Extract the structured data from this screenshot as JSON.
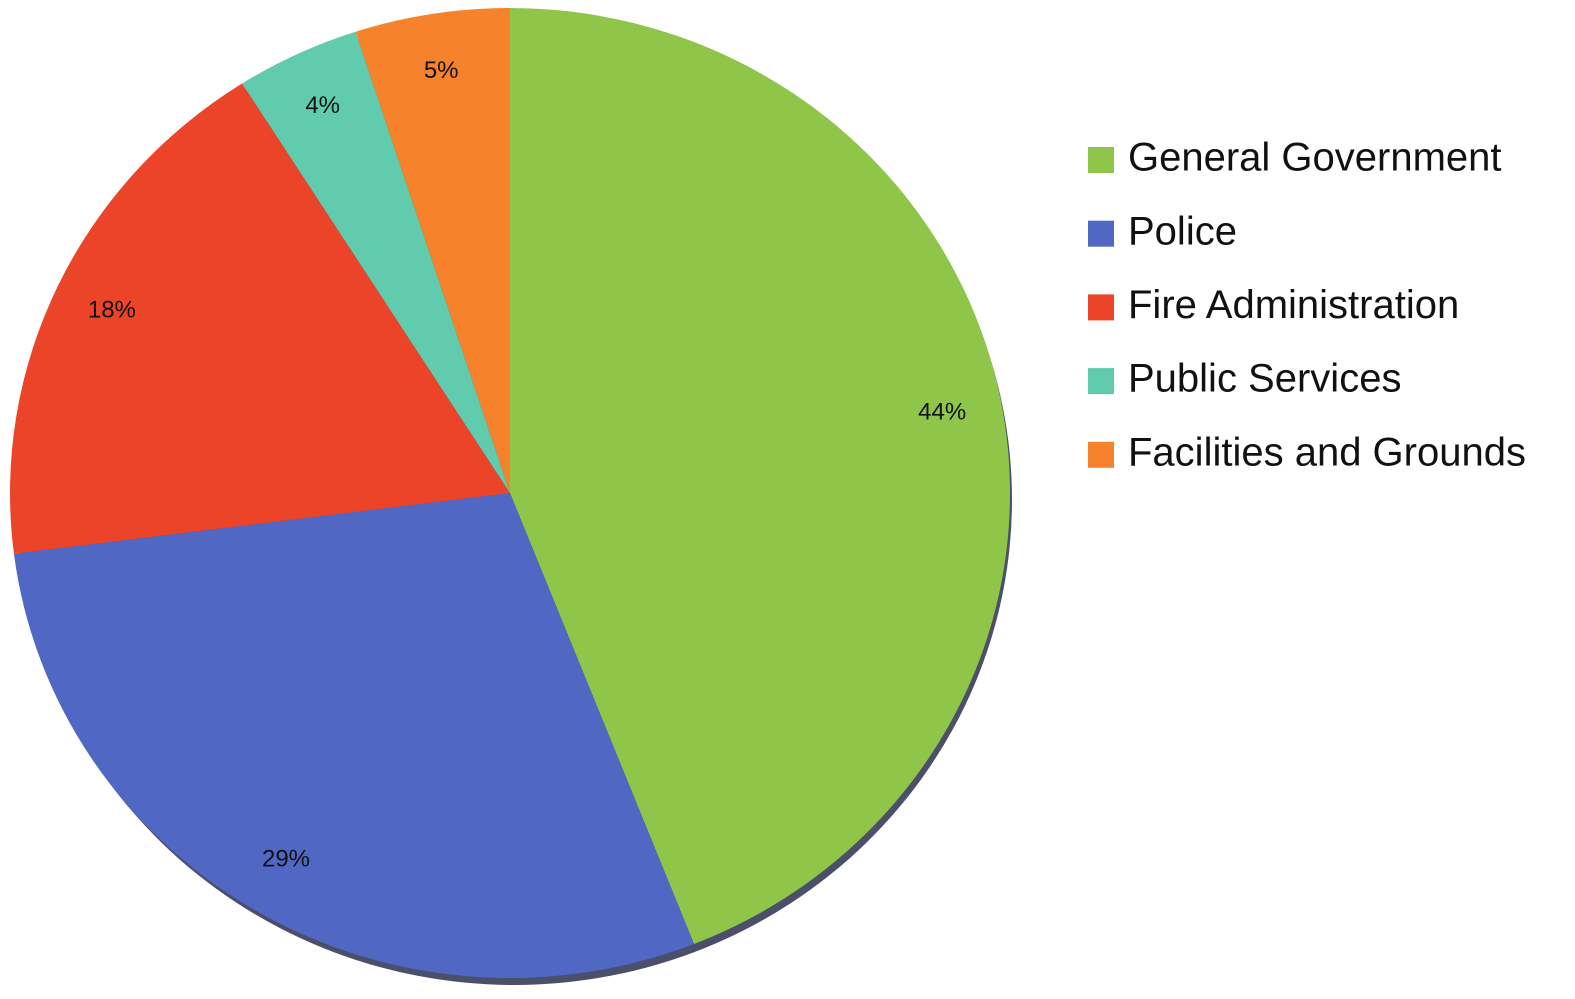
{
  "chart_data": {
    "type": "pie",
    "categories": [
      "General Government",
      "Police",
      "Fire Administration",
      "Public Services",
      "Facilities and Grounds"
    ],
    "values": [
      44,
      29,
      18,
      4,
      5
    ],
    "value_labels": [
      "44%",
      "29%",
      "18%",
      "4%",
      "5%"
    ],
    "colors": [
      "#8fc64a",
      "#5068c4",
      "#ec4429",
      "#60cbad",
      "#f6822c"
    ],
    "legend": "right"
  }
}
